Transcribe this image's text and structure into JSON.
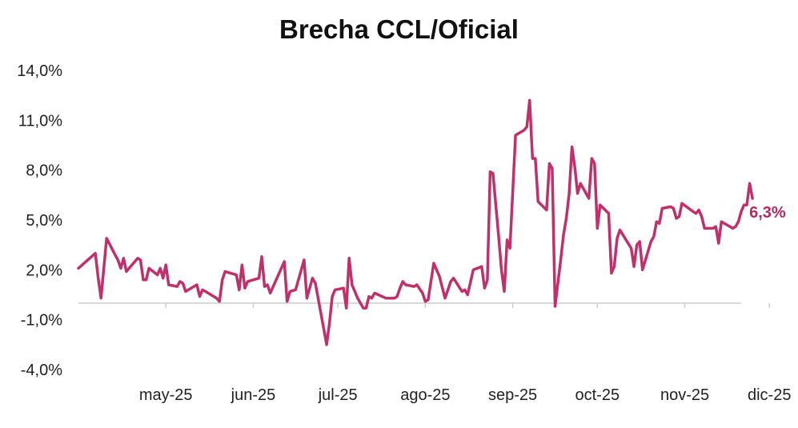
{
  "title": "Brecha CCL/Oficial",
  "colors": {
    "line": "#c0306a",
    "label": "#b22a5e",
    "axis": "#cccccc"
  },
  "chart_data": {
    "type": "line",
    "title": "Brecha CCL/Oficial",
    "xlabel": "",
    "ylabel": "",
    "ylim": [
      -4.0,
      14.0
    ],
    "yticks": [
      14.0,
      11.0,
      8.0,
      5.0,
      2.0,
      -1.0,
      -4.0
    ],
    "ytick_labels": [
      "14,0%",
      "11,0%",
      "8,0%",
      "5,0%",
      "2,0%",
      "-1,0%",
      "-4,0%"
    ],
    "xlim": [
      "2025-04-14",
      "2025-12-05"
    ],
    "xtick_labels": [
      {
        "date": "2025-05-15",
        "label": "may-25"
      },
      {
        "date": "2025-06-15",
        "label": "jun-25"
      },
      {
        "date": "2025-07-15",
        "label": "jul-25"
      },
      {
        "date": "2025-08-15",
        "label": "ago-25"
      },
      {
        "date": "2025-09-15",
        "label": "sep-25"
      },
      {
        "date": "2025-10-15",
        "label": "oct-25"
      },
      {
        "date": "2025-11-15",
        "label": "nov-25"
      },
      {
        "date": "2025-12-15",
        "label": "dic-25"
      }
    ],
    "grid": false,
    "end_label": "6,3%",
    "series": [
      {
        "points": [
          [
            "2025-04-14",
            2.1
          ],
          [
            "2025-04-20",
            3.0
          ],
          [
            "2025-04-21",
            1.5
          ],
          [
            "2025-04-22",
            0.3
          ],
          [
            "2025-04-24",
            3.9
          ],
          [
            "2025-04-27",
            2.9
          ],
          [
            "2025-04-28",
            2.6
          ],
          [
            "2025-04-29",
            2.1
          ],
          [
            "2025-04-30",
            2.7
          ],
          [
            "2025-05-01",
            1.9
          ],
          [
            "2025-05-05",
            2.7
          ],
          [
            "2025-05-06",
            2.6
          ],
          [
            "2025-05-07",
            1.4
          ],
          [
            "2025-05-08",
            1.4
          ],
          [
            "2025-05-09",
            2.1
          ],
          [
            "2025-05-12",
            1.7
          ],
          [
            "2025-05-13",
            2.1
          ],
          [
            "2025-05-14",
            1.5
          ],
          [
            "2025-05-15",
            2.3
          ],
          [
            "2025-05-16",
            1.1
          ],
          [
            "2025-05-19",
            1.0
          ],
          [
            "2025-05-20",
            1.3
          ],
          [
            "2025-05-21",
            1.2
          ],
          [
            "2025-05-22",
            0.7
          ],
          [
            "2025-05-26",
            1.1
          ],
          [
            "2025-05-27",
            0.4
          ],
          [
            "2025-05-28",
            0.8
          ],
          [
            "2025-05-29",
            0.7
          ],
          [
            "2025-06-02",
            0.3
          ],
          [
            "2025-06-03",
            0.1
          ],
          [
            "2025-06-04",
            1.4
          ],
          [
            "2025-06-05",
            1.9
          ],
          [
            "2025-06-09",
            1.7
          ],
          [
            "2025-06-10",
            0.8
          ],
          [
            "2025-06-11",
            2.3
          ],
          [
            "2025-06-12",
            0.9
          ],
          [
            "2025-06-13",
            1.3
          ],
          [
            "2025-06-17",
            1.5
          ],
          [
            "2025-06-18",
            2.8
          ],
          [
            "2025-06-19",
            1.0
          ],
          [
            "2025-06-20",
            1.1
          ],
          [
            "2025-06-21",
            0.6
          ],
          [
            "2025-06-26",
            2.5
          ],
          [
            "2025-06-27",
            0.1
          ],
          [
            "2025-06-28",
            0.7
          ],
          [
            "2025-06-30",
            0.8
          ],
          [
            "2025-07-03",
            2.6
          ],
          [
            "2025-07-04",
            0.3
          ],
          [
            "2025-07-06",
            1.5
          ],
          [
            "2025-07-07",
            1.2
          ],
          [
            "2025-07-11",
            -2.5
          ],
          [
            "2025-07-12",
            -1.2
          ],
          [
            "2025-07-13",
            0.4
          ],
          [
            "2025-07-14",
            0.8
          ],
          [
            "2025-07-17",
            0.9
          ],
          [
            "2025-07-18",
            -0.3
          ],
          [
            "2025-07-19",
            2.7
          ],
          [
            "2025-07-20",
            1.1
          ],
          [
            "2025-07-22",
            0.3
          ],
          [
            "2025-07-23",
            0.0
          ],
          [
            "2025-07-24",
            -0.3
          ],
          [
            "2025-07-25",
            -0.3
          ],
          [
            "2025-07-26",
            0.4
          ],
          [
            "2025-07-27",
            0.3
          ],
          [
            "2025-07-28",
            0.6
          ],
          [
            "2025-08-01",
            0.3
          ],
          [
            "2025-08-04",
            0.3
          ],
          [
            "2025-08-05",
            0.4
          ],
          [
            "2025-08-06",
            0.9
          ],
          [
            "2025-08-07",
            1.3
          ],
          [
            "2025-08-08",
            1.1
          ],
          [
            "2025-08-11",
            1.0
          ],
          [
            "2025-08-12",
            1.1
          ],
          [
            "2025-08-14",
            0.6
          ],
          [
            "2025-08-15",
            0.1
          ],
          [
            "2025-08-16",
            0.2
          ],
          [
            "2025-08-18",
            2.4
          ],
          [
            "2025-08-20",
            1.6
          ],
          [
            "2025-08-22",
            0.3
          ],
          [
            "2025-08-23",
            0.8
          ],
          [
            "2025-08-24",
            1.3
          ],
          [
            "2025-08-25",
            1.5
          ],
          [
            "2025-08-28",
            0.7
          ],
          [
            "2025-08-29",
            0.8
          ],
          [
            "2025-08-30",
            0.5
          ],
          [
            "2025-09-01",
            2.0
          ],
          [
            "2025-09-04",
            2.2
          ],
          [
            "2025-09-05",
            0.9
          ],
          [
            "2025-09-06",
            1.4
          ],
          [
            "2025-09-07",
            7.9
          ],
          [
            "2025-09-08",
            7.8
          ],
          [
            "2025-09-10",
            4.0
          ],
          [
            "2025-09-11",
            2.0
          ],
          [
            "2025-09-12",
            0.7
          ],
          [
            "2025-09-13",
            3.8
          ],
          [
            "2025-09-14",
            3.3
          ],
          [
            "2025-09-16",
            10.1
          ],
          [
            "2025-09-19",
            10.4
          ],
          [
            "2025-09-20",
            10.6
          ],
          [
            "2025-09-21",
            12.2
          ],
          [
            "2025-09-22",
            8.7
          ],
          [
            "2025-09-23",
            8.7
          ],
          [
            "2025-09-24",
            6.1
          ],
          [
            "2025-09-27",
            5.6
          ],
          [
            "2025-09-28",
            8.4
          ],
          [
            "2025-09-29",
            8.1
          ],
          [
            "2025-09-30",
            -0.2
          ],
          [
            "2025-10-02",
            2.6
          ],
          [
            "2025-10-03",
            4.1
          ],
          [
            "2025-10-04",
            5.1
          ],
          [
            "2025-10-05",
            6.6
          ],
          [
            "2025-10-06",
            9.4
          ],
          [
            "2025-10-07",
            8.2
          ],
          [
            "2025-10-08",
            6.6
          ],
          [
            "2025-10-09",
            7.2
          ],
          [
            "2025-10-12",
            6.3
          ],
          [
            "2025-10-13",
            8.7
          ],
          [
            "2025-10-14",
            8.4
          ],
          [
            "2025-10-15",
            4.5
          ],
          [
            "2025-10-16",
            5.9
          ],
          [
            "2025-10-19",
            5.4
          ],
          [
            "2025-10-20",
            1.8
          ],
          [
            "2025-10-21",
            2.2
          ],
          [
            "2025-10-22",
            3.9
          ],
          [
            "2025-10-23",
            4.4
          ],
          [
            "2025-10-27",
            3.3
          ],
          [
            "2025-10-28",
            2.2
          ],
          [
            "2025-10-29",
            3.5
          ],
          [
            "2025-10-30",
            3.7
          ],
          [
            "2025-10-31",
            2.0
          ],
          [
            "2025-11-03",
            3.7
          ],
          [
            "2025-11-04",
            4.0
          ],
          [
            "2025-11-05",
            4.9
          ],
          [
            "2025-11-06",
            4.8
          ],
          [
            "2025-11-07",
            5.7
          ],
          [
            "2025-11-10",
            5.8
          ],
          [
            "2025-11-11",
            5.7
          ],
          [
            "2025-11-12",
            5.1
          ],
          [
            "2025-11-13",
            5.2
          ],
          [
            "2025-11-14",
            6.0
          ],
          [
            "2025-11-18",
            5.5
          ],
          [
            "2025-11-19",
            5.4
          ],
          [
            "2025-11-20",
            5.6
          ],
          [
            "2025-11-21",
            5.2
          ],
          [
            "2025-11-22",
            4.5
          ],
          [
            "2025-11-25",
            4.5
          ],
          [
            "2025-11-26",
            4.6
          ],
          [
            "2025-11-27",
            3.6
          ],
          [
            "2025-11-28",
            4.9
          ],
          [
            "2025-12-01",
            4.6
          ],
          [
            "2025-12-02",
            4.5
          ],
          [
            "2025-12-03",
            4.6
          ],
          [
            "2025-12-04",
            4.9
          ],
          [
            "2025-12-05",
            5.5
          ],
          [
            "2025-12-06",
            5.9
          ],
          [
            "2025-12-07",
            5.9
          ],
          [
            "2025-12-08",
            7.2
          ],
          [
            "2025-12-09",
            6.3
          ]
        ]
      }
    ]
  }
}
